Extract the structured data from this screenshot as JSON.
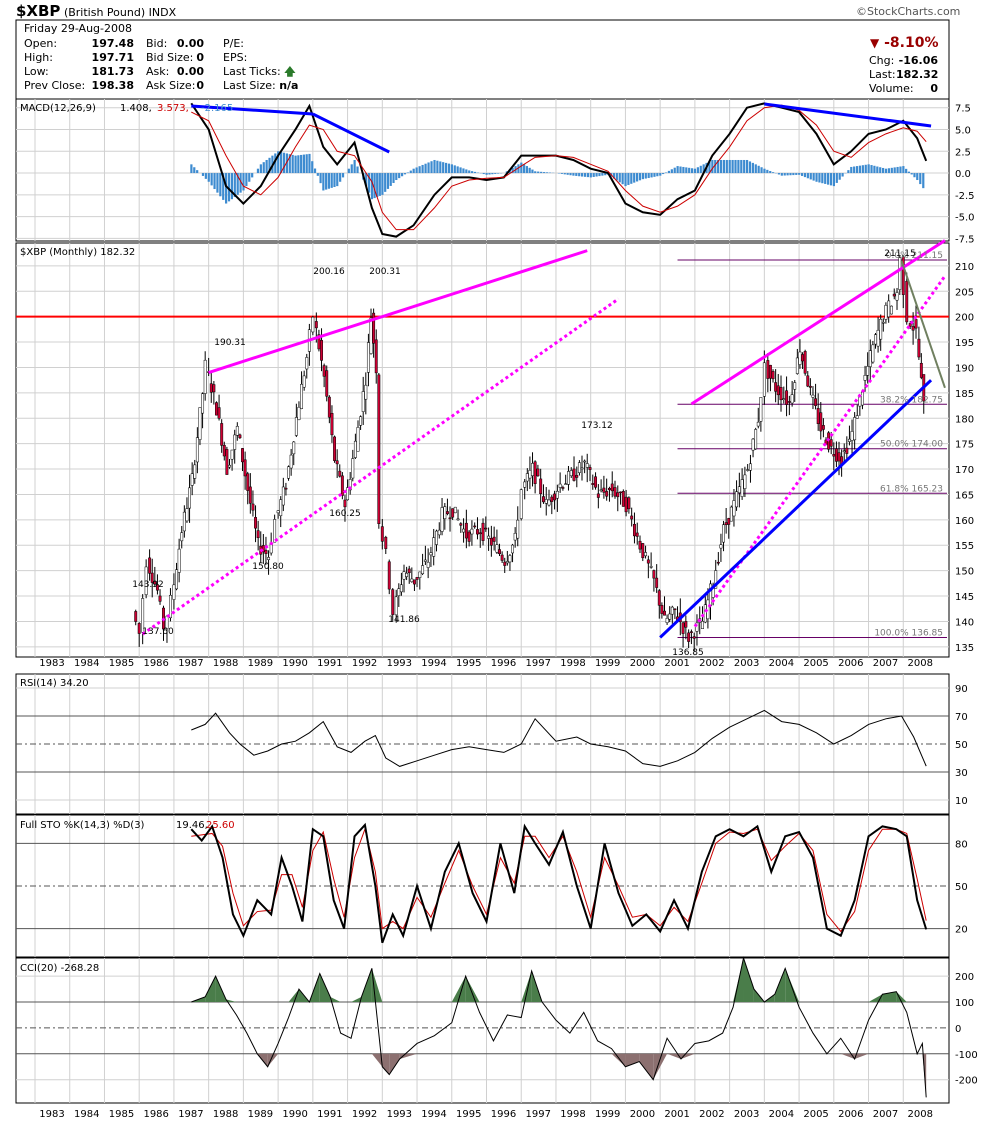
{
  "header": {
    "symbol": "$XBP",
    "name": "(British Pound)",
    "exchange": "INDX",
    "site": "©StockCharts.com",
    "date_line": "Friday  29-Aug-2008",
    "quote": [
      {
        "label": "Open:",
        "value": "197.48"
      },
      {
        "label": "High:",
        "value": "197.71"
      },
      {
        "label": "Low:",
        "value": "181.73"
      },
      {
        "label": "Prev Close:",
        "value": "198.38"
      }
    ],
    "book": [
      {
        "label": "Bid:",
        "value": "0.00"
      },
      {
        "label": "Bid Size:",
        "value": "0"
      },
      {
        "label": "Ask:",
        "value": "0.00"
      },
      {
        "label": "Ask Size:",
        "value": "0"
      }
    ],
    "misc": [
      {
        "label": "P/E:",
        "value": ""
      },
      {
        "label": "EPS:",
        "value": ""
      },
      {
        "label": "Last Ticks:",
        "value": ""
      },
      {
        "label": "Last Size:",
        "value": "n/a"
      }
    ],
    "pct_change": "-8.10%",
    "right": [
      {
        "label": "Chg:",
        "value": "-16.06"
      },
      {
        "label": "Last:",
        "value": "182.32"
      },
      {
        "label": "Volume:",
        "value": "0"
      }
    ]
  },
  "chart_data": [
    {
      "type": "line",
      "panel": "macd",
      "legend": [
        "MACD(12,26,9)",
        "1.408,",
        "3.573,",
        "-2.165"
      ],
      "yticks": [
        7.5,
        5.0,
        2.5,
        0.0,
        -2.5,
        -5.0,
        -7.5
      ],
      "ylim": [
        -7.5,
        8.5
      ],
      "x": [
        1987.5,
        1988.0,
        1988.5,
        1989.0,
        1989.5,
        1990.0,
        1990.5,
        1990.9,
        1991.3,
        1991.7,
        1992.2,
        1992.7,
        1993.0,
        1993.4,
        1993.9,
        1994.5,
        1995.0,
        1995.5,
        1996.0,
        1996.5,
        1997.0,
        1997.4,
        1998.0,
        1998.5,
        1999.0,
        1999.5,
        2000.0,
        2000.5,
        2001.0,
        2001.5,
        2002.0,
        2002.5,
        2003.0,
        2003.5,
        2004.0,
        2004.5,
        2005.0,
        2005.5,
        2006.0,
        2006.5,
        2007.0,
        2007.5,
        2008.0,
        2008.4,
        2008.66
      ],
      "series": [
        {
          "name": "MACD",
          "color": "#000000",
          "values": [
            8.0,
            5.0,
            -1.5,
            -3.5,
            -1.5,
            2.0,
            5.0,
            7.7,
            3.0,
            1.0,
            3.5,
            -4.0,
            -7.0,
            -7.3,
            -6.0,
            -2.5,
            -0.5,
            -0.5,
            -0.8,
            -0.5,
            2.0,
            2.0,
            2.0,
            1.5,
            0.5,
            0.0,
            -3.5,
            -4.5,
            -4.8,
            -3.0,
            -2.0,
            2.0,
            4.5,
            7.5,
            8.0,
            7.5,
            7.0,
            4.5,
            1.0,
            2.5,
            4.5,
            5.0,
            6.0,
            4.0,
            1.4
          ]
        },
        {
          "name": "Signal",
          "color": "#cc0000",
          "values": [
            7.0,
            6.0,
            2.0,
            -1.5,
            -2.5,
            -0.5,
            3.0,
            5.5,
            5.0,
            2.5,
            2.0,
            -1.0,
            -4.5,
            -6.5,
            -6.5,
            -4.0,
            -1.5,
            -0.8,
            -0.6,
            -0.5,
            0.8,
            1.8,
            2.0,
            1.8,
            1.0,
            0.2,
            -2.0,
            -3.8,
            -4.5,
            -3.8,
            -2.5,
            0.5,
            3.0,
            6.0,
            7.5,
            7.8,
            7.2,
            5.5,
            2.5,
            1.8,
            3.5,
            4.5,
            5.2,
            4.8,
            3.6
          ]
        },
        {
          "name": "Histogram",
          "color": "#3d8bd0",
          "values": [
            1.0,
            -1.0,
            -3.5,
            -2.0,
            1.0,
            2.5,
            2.0,
            2.2,
            -2.0,
            -1.5,
            1.5,
            -3.0,
            -2.5,
            -0.8,
            0.5,
            1.5,
            1.0,
            0.3,
            -0.2,
            0.0,
            1.2,
            0.2,
            0.0,
            -0.3,
            -0.5,
            -0.2,
            -1.5,
            -0.7,
            -0.3,
            0.8,
            0.5,
            1.5,
            1.5,
            1.5,
            0.5,
            -0.3,
            -0.2,
            -1.0,
            -1.5,
            0.7,
            1.0,
            0.5,
            0.8,
            -0.8,
            -2.2
          ]
        }
      ],
      "annotations": [
        "blue divergence lines"
      ]
    },
    {
      "type": "line",
      "panel": "price",
      "legend": "$XBP (Monthly) 182.32",
      "yticks": [
        135,
        140,
        145,
        150,
        155,
        160,
        165,
        170,
        175,
        180,
        185,
        190,
        195,
        200,
        205,
        210
      ],
      "ylim": [
        133,
        214
      ],
      "x": [
        1985.9,
        1986.1,
        1986.3,
        1986.6,
        1986.8,
        1987.0,
        1987.3,
        1987.6,
        1987.9,
        1988.0,
        1988.3,
        1988.6,
        1988.9,
        1989.2,
        1989.5,
        1989.8,
        1990.0,
        1990.3,
        1990.6,
        1990.9,
        1991.1,
        1991.4,
        1991.7,
        1992.0,
        1992.3,
        1992.6,
        1992.75,
        1992.9,
        1993.0,
        1993.2,
        1993.4,
        1993.7,
        1994.0,
        1994.4,
        1994.8,
        1995.1,
        1995.5,
        1995.9,
        1996.3,
        1996.6,
        1996.9,
        1997.1,
        1997.4,
        1997.8,
        1998.2,
        1998.6,
        1998.9,
        1999.3,
        1999.7,
        2000.1,
        2000.5,
        2000.9,
        2001.2,
        2001.5,
        2001.9,
        2002.3,
        2002.6,
        2002.9,
        2003.2,
        2003.6,
        2003.9,
        2004.1,
        2004.4,
        2004.8,
        2005.1,
        2005.4,
        2005.7,
        2006.0,
        2006.3,
        2006.6,
        2006.9,
        2007.2,
        2007.5,
        2007.9,
        2008.0,
        2008.2,
        2008.45,
        2008.66
      ],
      "series": [
        {
          "name": "$XBP",
          "color": "#000000",
          "values": [
            142,
            137.6,
            152,
            146,
            139,
            144,
            158,
            168,
            185,
            190.31,
            182,
            170,
            178,
            166,
            155,
            153,
            160,
            167,
            180,
            192,
            200.16,
            188,
            172,
            163,
            175,
            188,
            200.31,
            190,
            160,
            153,
            141.86,
            150,
            148,
            152,
            161,
            162,
            157,
            158,
            155,
            152,
            156,
            166,
            170,
            163,
            167,
            169,
            171,
            165,
            166,
            163,
            155,
            148,
            140,
            142,
            136.85,
            140,
            148,
            158,
            163,
            170,
            180,
            190,
            186,
            183,
            194,
            185,
            178,
            174,
            172,
            177,
            186,
            194,
            200,
            205,
            211.15,
            200,
            197,
            182.32
          ]
        }
      ],
      "labels": [
        "143.92",
        "137.60",
        "190.31",
        "150.80",
        "200.16",
        "160.25",
        "200.31",
        "141.86",
        "173.12",
        "136.85",
        "211.15"
      ],
      "fib_levels": [
        {
          "label": "0.0%",
          "value": 211.15
        },
        {
          "label": "38.2%",
          "value": 182.75
        },
        {
          "label": "50.0%",
          "value": 174.0
        },
        {
          "label": "61.8%",
          "value": 165.23
        },
        {
          "label": "100.0%",
          "value": 136.85
        }
      ],
      "horizontal_line": 200
    },
    {
      "type": "line",
      "panel": "rsi",
      "legend": "RSI(14) 34.20",
      "yticks": [
        90,
        70,
        50,
        30,
        10
      ],
      "ylim": [
        0,
        100
      ],
      "x": [
        1987.5,
        1987.9,
        1988.2,
        1988.6,
        1988.9,
        1989.3,
        1989.7,
        1990.1,
        1990.5,
        1990.9,
        1991.3,
        1991.7,
        1992.1,
        1992.5,
        1992.8,
        1993.1,
        1993.5,
        1994.0,
        1994.5,
        1995.0,
        1995.5,
        1996.0,
        1996.5,
        1997.0,
        1997.4,
        1998.0,
        1998.6,
        1999.0,
        1999.5,
        2000.0,
        2000.5,
        2001.0,
        2001.5,
        2002.0,
        2002.5,
        2003.0,
        2003.5,
        2004.0,
        2004.5,
        2005.0,
        2005.5,
        2006.0,
        2006.5,
        2007.0,
        2007.5,
        2007.95,
        2008.3,
        2008.66
      ],
      "series": [
        {
          "name": "RSI",
          "color": "#000000",
          "values": [
            60,
            64,
            72,
            58,
            50,
            42,
            45,
            50,
            52,
            58,
            66,
            48,
            44,
            52,
            56,
            40,
            34,
            38,
            42,
            46,
            48,
            46,
            44,
            50,
            68,
            52,
            55,
            50,
            48,
            45,
            36,
            34,
            38,
            44,
            54,
            62,
            68,
            74,
            66,
            64,
            58,
            50,
            56,
            64,
            68,
            70,
            55,
            34.2
          ]
        }
      ]
    },
    {
      "type": "line",
      "panel": "stochastic",
      "legend": [
        "Full STO %K(14,3) %D(3)",
        "19.46,",
        "25.60"
      ],
      "yticks": [
        80,
        50,
        20
      ],
      "ylim": [
        0,
        100
      ],
      "x": [
        1987.5,
        1987.8,
        1988.1,
        1988.4,
        1988.7,
        1989.0,
        1989.4,
        1989.8,
        1990.1,
        1990.4,
        1990.7,
        1991.0,
        1991.3,
        1991.6,
        1991.9,
        1992.2,
        1992.5,
        1992.8,
        1993.0,
        1993.3,
        1993.6,
        1994.0,
        1994.4,
        1994.8,
        1995.2,
        1995.6,
        1996.0,
        1996.4,
        1996.8,
        1997.1,
        1997.4,
        1997.8,
        1998.2,
        1998.6,
        1999.0,
        1999.4,
        1999.8,
        2000.2,
        2000.6,
        2001.0,
        2001.4,
        2001.8,
        2002.2,
        2002.6,
        2003.0,
        2003.4,
        2003.8,
        2004.2,
        2004.6,
        2005.0,
        2005.4,
        2005.8,
        2006.2,
        2006.6,
        2007.0,
        2007.4,
        2007.8,
        2008.1,
        2008.4,
        2008.66
      ],
      "series": [
        {
          "name": "%K",
          "color": "#000000",
          "values": [
            90,
            82,
            92,
            70,
            30,
            15,
            40,
            30,
            70,
            50,
            25,
            90,
            85,
            40,
            20,
            85,
            93,
            50,
            10,
            30,
            15,
            50,
            20,
            60,
            80,
            45,
            25,
            80,
            45,
            92,
            80,
            65,
            88,
            50,
            20,
            80,
            45,
            22,
            30,
            18,
            40,
            20,
            60,
            85,
            90,
            85,
            92,
            60,
            85,
            88,
            70,
            20,
            15,
            40,
            85,
            92,
            90,
            85,
            40,
            19.46
          ]
        },
        {
          "name": "%D",
          "color": "#cc0000",
          "values": [
            85,
            86,
            87,
            78,
            45,
            22,
            32,
            33,
            58,
            58,
            35,
            75,
            88,
            55,
            28,
            70,
            90,
            60,
            20,
            25,
            20,
            42,
            28,
            52,
            75,
            50,
            30,
            70,
            52,
            85,
            85,
            70,
            85,
            60,
            28,
            70,
            50,
            28,
            30,
            22,
            35,
            25,
            52,
            80,
            88,
            87,
            90,
            68,
            78,
            87,
            75,
            30,
            18,
            32,
            75,
            90,
            90,
            87,
            55,
            25.6
          ]
        }
      ]
    },
    {
      "type": "area",
      "panel": "cci",
      "legend": "CCI(20) -268.28",
      "yticks": [
        200,
        100,
        0,
        -100,
        -200
      ],
      "ylim": [
        -290,
        270
      ],
      "x": [
        1987.5,
        1987.9,
        1988.2,
        1988.5,
        1988.8,
        1989.1,
        1989.4,
        1989.7,
        1990.0,
        1990.3,
        1990.6,
        1990.9,
        1991.2,
        1991.5,
        1991.8,
        1992.1,
        1992.4,
        1992.7,
        1993.0,
        1993.2,
        1993.5,
        1994.0,
        1994.5,
        1995.0,
        1995.4,
        1995.8,
        1996.2,
        1996.6,
        1997.0,
        1997.3,
        1997.6,
        1998.0,
        1998.4,
        1998.8,
        1999.2,
        1999.6,
        2000.0,
        2000.4,
        2000.8,
        2001.2,
        2001.6,
        2002.0,
        2002.4,
        2002.8,
        2003.1,
        2003.4,
        2003.7,
        2004.0,
        2004.3,
        2004.6,
        2005.0,
        2005.4,
        2005.8,
        2006.2,
        2006.6,
        2007.0,
        2007.4,
        2007.8,
        2008.1,
        2008.4,
        2008.55,
        2008.66
      ],
      "series": [
        {
          "name": "CCI",
          "color": "#000000",
          "values": [
            100,
            120,
            200,
            110,
            50,
            -20,
            -100,
            -150,
            -60,
            40,
            150,
            100,
            210,
            120,
            -20,
            -40,
            120,
            230,
            -150,
            -180,
            -120,
            -60,
            -30,
            20,
            200,
            60,
            -50,
            50,
            40,
            220,
            100,
            30,
            -20,
            60,
            -50,
            -80,
            -150,
            -130,
            -200,
            -40,
            -120,
            -60,
            -50,
            -20,
            80,
            270,
            150,
            100,
            130,
            230,
            80,
            -20,
            -100,
            -40,
            -120,
            30,
            130,
            140,
            60,
            -100,
            -60,
            -268.28
          ]
        }
      ]
    }
  ],
  "xaxis_years": [
    "1983",
    "1984",
    "1985",
    "1986",
    "1987",
    "1988",
    "1989",
    "1990",
    "1991",
    "1992",
    "1993",
    "1994",
    "1995",
    "1996",
    "1997",
    "1998",
    "1999",
    "2000",
    "2001",
    "2002",
    "2003",
    "2004",
    "2005",
    "2006",
    "2007",
    "2008"
  ],
  "colors": {
    "grid": "#d0d0d0",
    "magenta": "#ff00ff",
    "blue": "#0000ff",
    "red": "#ff0000",
    "green": "#708060",
    "up": "#009900",
    "down": "#cc0033",
    "cci_pos": "#4a7d4a",
    "cci_neg": "#8c7070",
    "fib": "#660066"
  }
}
